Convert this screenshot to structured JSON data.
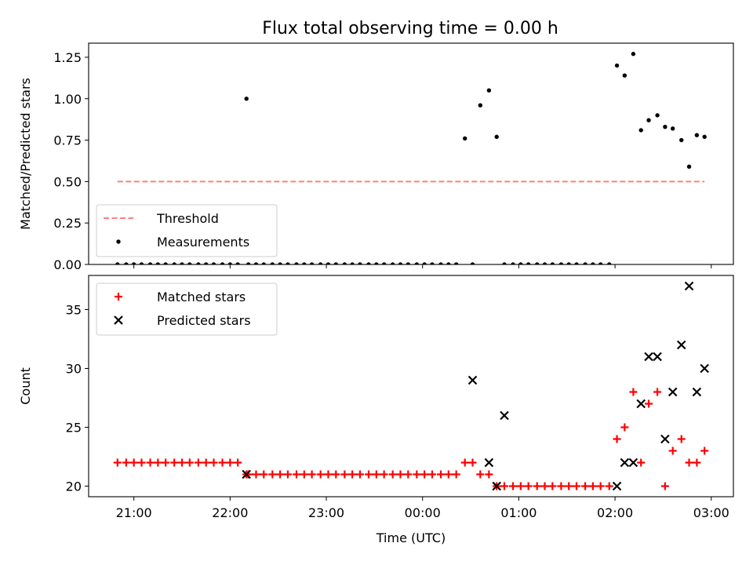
{
  "figure": {
    "title": "Flux total observing time = 0.00 h"
  },
  "chart_data": [
    {
      "type": "scatter",
      "title": "Flux total observing time = 0.00 h",
      "xlabel": "",
      "ylabel": "Matched/Predicted stars",
      "x_is_time": true,
      "x_unit": "hours relative to 00:00 UTC",
      "xlim": [
        -3.47,
        3.23
      ],
      "ylim": [
        0.0,
        1.335
      ],
      "yticks": [
        0.0,
        0.25,
        0.5,
        0.75,
        1.0,
        1.25
      ],
      "ytick_labels": [
        "0.00",
        "0.25",
        "0.50",
        "0.75",
        "1.00",
        "1.25"
      ],
      "xtick_values": [
        -3,
        -2,
        -1,
        0,
        1,
        2,
        3
      ],
      "xtick_labels": [
        "21:00",
        "22:00",
        "23:00",
        "00:00",
        "01:00",
        "02:00",
        "03:00"
      ],
      "show_xticklabels": false,
      "grid": false,
      "legend": {
        "placement": "lower-left",
        "entries": [
          {
            "label": "Threshold",
            "style": "dashed-line",
            "color": "#ff7f7f"
          },
          {
            "label": "Measurements",
            "style": "dot",
            "color": "#000000"
          }
        ]
      },
      "series": [
        {
          "name": "Threshold",
          "kind": "line",
          "style": "dashed",
          "color": "#ff7f7f",
          "x": [
            -3.17,
            2.93
          ],
          "y": [
            0.5,
            0.5
          ]
        },
        {
          "name": "Measurements",
          "kind": "dot",
          "color": "#000000",
          "x": [
            -3.17,
            -3.08,
            -3.0,
            -2.92,
            -2.83,
            -2.75,
            -2.67,
            -2.58,
            -2.5,
            -2.42,
            -2.33,
            -2.25,
            -2.17,
            -2.08,
            -2.0,
            -1.92,
            -1.83,
            -1.81,
            -1.73,
            -1.65,
            -1.56,
            -1.48,
            -1.4,
            -1.31,
            -1.23,
            -1.15,
            -1.06,
            -0.98,
            -0.9,
            -0.81,
            -0.73,
            -0.65,
            -0.56,
            -0.48,
            -0.4,
            -0.31,
            -0.23,
            -0.15,
            -0.06,
            0.02,
            0.1,
            0.19,
            0.27,
            0.35,
            0.44,
            0.52,
            0.6,
            0.69,
            0.77,
            0.85,
            0.94,
            1.02,
            1.1,
            1.19,
            1.27,
            1.35,
            1.44,
            1.52,
            1.6,
            1.69,
            1.77,
            1.85,
            1.94,
            2.02,
            2.1,
            2.19,
            2.27,
            2.35,
            2.44,
            2.52,
            2.6,
            2.69,
            2.77,
            2.85,
            2.93
          ],
          "y": [
            0,
            0,
            0,
            0,
            0,
            0,
            0,
            0,
            0,
            0,
            0,
            0,
            0,
            0,
            0,
            0,
            1.0,
            0,
            0,
            0,
            0,
            0,
            0,
            0,
            0,
            0,
            0,
            0,
            0,
            0,
            0,
            0,
            0,
            0,
            0,
            0,
            0,
            0,
            0,
            0,
            0,
            0,
            0,
            0,
            0.76,
            0,
            0.96,
            1.05,
            0.77,
            0,
            0,
            0,
            0,
            0,
            0,
            0,
            0,
            0,
            0,
            0,
            0,
            0,
            0,
            1.2,
            1.14,
            1.27,
            0.81,
            0.87,
            0.9,
            0.83,
            0.82,
            0.75,
            0.59,
            0.78,
            0.77
          ]
        }
      ]
    },
    {
      "type": "scatter",
      "title": "",
      "xlabel": "Time (UTC)",
      "ylabel": "Count",
      "x_is_time": true,
      "x_unit": "hours relative to 00:00 UTC",
      "xlim": [
        -3.47,
        3.23
      ],
      "ylim": [
        19.1,
        37.9
      ],
      "yticks": [
        20,
        25,
        30,
        35
      ],
      "ytick_labels": [
        "20",
        "25",
        "30",
        "35"
      ],
      "xtick_values": [
        -3,
        -2,
        -1,
        0,
        1,
        2,
        3
      ],
      "xtick_labels": [
        "21:00",
        "22:00",
        "23:00",
        "00:00",
        "01:00",
        "02:00",
        "03:00"
      ],
      "show_xticklabels": true,
      "grid": false,
      "legend": {
        "placement": "upper-left",
        "entries": [
          {
            "label": "Matched stars",
            "style": "plus",
            "color": "#ff0000"
          },
          {
            "label": "Predicted stars",
            "style": "x",
            "color": "#000000"
          }
        ]
      },
      "series": [
        {
          "name": "Matched stars",
          "kind": "plus",
          "color": "#ff0000",
          "x": [
            -3.17,
            -3.08,
            -3.0,
            -2.92,
            -2.83,
            -2.75,
            -2.67,
            -2.58,
            -2.5,
            -2.42,
            -2.33,
            -2.25,
            -2.17,
            -2.08,
            -2.0,
            -1.92,
            -1.83,
            -1.81,
            -1.73,
            -1.65,
            -1.56,
            -1.48,
            -1.4,
            -1.31,
            -1.23,
            -1.15,
            -1.06,
            -0.98,
            -0.9,
            -0.81,
            -0.73,
            -0.65,
            -0.56,
            -0.48,
            -0.4,
            -0.31,
            -0.23,
            -0.15,
            -0.06,
            0.02,
            0.1,
            0.19,
            0.27,
            0.35,
            0.44,
            0.52,
            0.6,
            0.69,
            0.77,
            0.85,
            0.94,
            1.02,
            1.1,
            1.19,
            1.27,
            1.35,
            1.44,
            1.52,
            1.6,
            1.69,
            1.77,
            1.85,
            1.94,
            2.02,
            2.1,
            2.19,
            2.27,
            2.35,
            2.44,
            2.52,
            2.6,
            2.69,
            2.77,
            2.85,
            2.93
          ],
          "y": [
            22,
            22,
            22,
            22,
            22,
            22,
            22,
            22,
            22,
            22,
            22,
            22,
            22,
            22,
            22,
            22,
            21,
            21,
            21,
            21,
            21,
            21,
            21,
            21,
            21,
            21,
            21,
            21,
            21,
            21,
            21,
            21,
            21,
            21,
            21,
            21,
            21,
            21,
            21,
            21,
            21,
            21,
            21,
            21,
            22,
            22,
            21,
            21,
            20,
            20,
            20,
            20,
            20,
            20,
            20,
            20,
            20,
            20,
            20,
            20,
            20,
            20,
            20,
            24,
            25,
            28,
            22,
            27,
            28,
            20,
            23,
            24,
            22,
            22,
            23
          ]
        },
        {
          "name": "Predicted stars",
          "kind": "x",
          "color": "#000000",
          "x": [
            -1.83,
            0.52,
            0.69,
            0.77,
            0.85,
            2.02,
            2.1,
            2.19,
            2.27,
            2.35,
            2.44,
            2.52,
            2.6,
            2.69,
            2.77,
            2.85,
            2.93
          ],
          "y": [
            21,
            29,
            22,
            20,
            26,
            20,
            22,
            22,
            27,
            31,
            31,
            24,
            28,
            32,
            37,
            28,
            30
          ]
        }
      ]
    }
  ]
}
